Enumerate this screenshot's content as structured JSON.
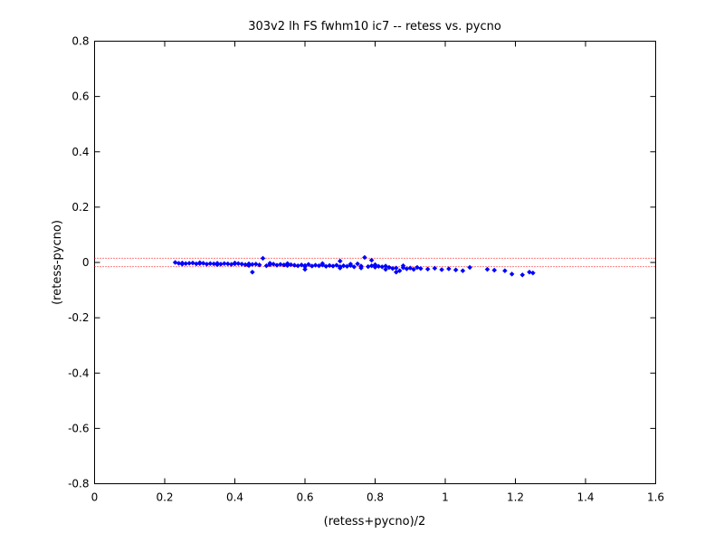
{
  "chart_data": {
    "type": "scatter",
    "title": "303v2 lh FS fwhm10 ic7 -- retess vs. pycno",
    "xlabel": "(retess+pycno)/2",
    "ylabel": "(retess-pycno)",
    "xlim": [
      0,
      1.6
    ],
    "ylim": [
      -0.8,
      0.8
    ],
    "xticks": [
      "0",
      "0.2",
      "0.4",
      "0.6",
      "0.8",
      "1",
      "1.2",
      "1.4",
      "1.6"
    ],
    "yticks": [
      "-0.8",
      "-0.6",
      "-0.4",
      "-0.2",
      "0",
      "0.2",
      "0.4",
      "0.6",
      "0.8"
    ],
    "grid": false,
    "marker_color": "#0000ff",
    "reference_lines": {
      "color": "#ff0000",
      "style": "dotted",
      "y": [
        0.015,
        -0.015
      ]
    },
    "series": [
      {
        "points": [
          [
            0.23,
            0.0
          ],
          [
            0.24,
            -0.003
          ],
          [
            0.25,
            -0.002
          ],
          [
            0.26,
            -0.004
          ],
          [
            0.27,
            -0.003
          ],
          [
            0.28,
            -0.002
          ],
          [
            0.29,
            -0.005
          ],
          [
            0.3,
            -0.004
          ],
          [
            0.31,
            -0.003
          ],
          [
            0.32,
            -0.006
          ],
          [
            0.33,
            -0.004
          ],
          [
            0.34,
            -0.005
          ],
          [
            0.35,
            -0.003
          ],
          [
            0.36,
            -0.006
          ],
          [
            0.37,
            -0.004
          ],
          [
            0.38,
            -0.005
          ],
          [
            0.39,
            -0.007
          ],
          [
            0.4,
            -0.005
          ],
          [
            0.41,
            -0.004
          ],
          [
            0.42,
            -0.006
          ],
          [
            0.43,
            -0.008
          ],
          [
            0.44,
            -0.005
          ],
          [
            0.45,
            -0.007
          ],
          [
            0.46,
            -0.006
          ],
          [
            0.47,
            -0.009
          ],
          [
            0.48,
            0.015
          ],
          [
            0.49,
            -0.012
          ],
          [
            0.5,
            -0.008
          ],
          [
            0.51,
            -0.006
          ],
          [
            0.52,
            -0.01
          ],
          [
            0.53,
            -0.007
          ],
          [
            0.54,
            -0.009
          ],
          [
            0.55,
            -0.011
          ],
          [
            0.56,
            -0.008
          ],
          [
            0.57,
            -0.01
          ],
          [
            0.58,
            -0.012
          ],
          [
            0.59,
            -0.009
          ],
          [
            0.6,
            -0.011
          ],
          [
            0.61,
            -0.007
          ],
          [
            0.62,
            -0.013
          ],
          [
            0.63,
            -0.01
          ],
          [
            0.64,
            -0.012
          ],
          [
            0.65,
            -0.009
          ],
          [
            0.66,
            -0.014
          ],
          [
            0.67,
            -0.011
          ],
          [
            0.68,
            -0.013
          ],
          [
            0.69,
            -0.01
          ],
          [
            0.7,
            -0.015
          ],
          [
            0.71,
            -0.012
          ],
          [
            0.72,
            -0.014
          ],
          [
            0.73,
            -0.011
          ],
          [
            0.74,
            -0.016
          ],
          [
            0.75,
            -0.005
          ],
          [
            0.76,
            -0.013
          ],
          [
            0.77,
            0.018
          ],
          [
            0.78,
            -0.015
          ],
          [
            0.79,
            -0.012
          ],
          [
            0.8,
            -0.017
          ],
          [
            0.81,
            -0.014
          ],
          [
            0.82,
            -0.016
          ],
          [
            0.83,
            -0.013
          ],
          [
            0.84,
            -0.018
          ],
          [
            0.85,
            -0.022
          ],
          [
            0.86,
            -0.02
          ],
          [
            0.87,
            -0.03
          ],
          [
            0.88,
            -0.019
          ],
          [
            0.89,
            -0.023
          ],
          [
            0.9,
            -0.02
          ],
          [
            0.91,
            -0.025
          ],
          [
            0.92,
            -0.018
          ],
          [
            0.93,
            -0.022
          ],
          [
            0.95,
            -0.024
          ],
          [
            0.97,
            -0.021
          ],
          [
            0.99,
            -0.026
          ],
          [
            1.01,
            -0.023
          ],
          [
            1.03,
            -0.027
          ],
          [
            1.05,
            -0.03
          ],
          [
            1.07,
            -0.018
          ],
          [
            1.12,
            -0.025
          ],
          [
            1.14,
            -0.028
          ],
          [
            1.17,
            -0.03
          ],
          [
            1.19,
            -0.042
          ],
          [
            1.22,
            -0.045
          ],
          [
            1.24,
            -0.035
          ],
          [
            1.25,
            -0.038
          ],
          [
            0.45,
            -0.035
          ],
          [
            0.6,
            -0.025
          ],
          [
            0.7,
            0.005
          ],
          [
            0.79,
            0.008
          ],
          [
            0.86,
            -0.035
          ],
          [
            0.25,
            -0.006
          ],
          [
            0.3,
            -0.001
          ],
          [
            0.35,
            -0.008
          ],
          [
            0.4,
            -0.002
          ],
          [
            0.44,
            -0.011
          ],
          [
            0.5,
            -0.003
          ],
          [
            0.55,
            -0.004
          ],
          [
            0.6,
            -0.015
          ],
          [
            0.65,
            -0.004
          ],
          [
            0.7,
            -0.02
          ],
          [
            0.73,
            -0.006
          ],
          [
            0.76,
            -0.02
          ],
          [
            0.8,
            -0.008
          ],
          [
            0.83,
            -0.025
          ],
          [
            0.88,
            -0.012
          ]
        ]
      }
    ]
  }
}
